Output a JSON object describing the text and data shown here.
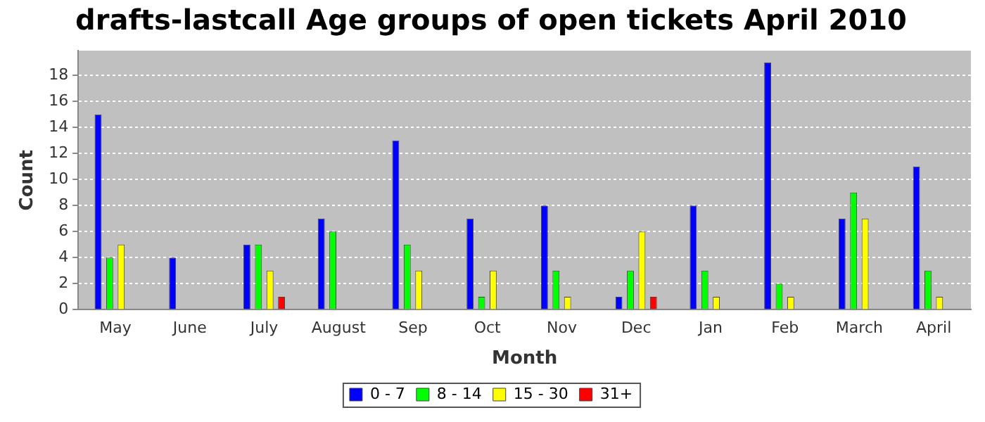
{
  "chart_data": {
    "type": "bar",
    "title": "drafts-lastcall Age groups of open tickets April 2010",
    "xlabel": "Month",
    "ylabel": "Count",
    "categories": [
      "May",
      "June",
      "July",
      "August",
      "Sep",
      "Oct",
      "Nov",
      "Dec",
      "Jan",
      "Feb",
      "March",
      "April"
    ],
    "series": [
      {
        "name": "0 - 7",
        "color": "#0000ff",
        "values": [
          15,
          4,
          5,
          7,
          13,
          7,
          8,
          1,
          8,
          19,
          7,
          11
        ]
      },
      {
        "name": "8 - 14",
        "color": "#00ff00",
        "values": [
          4,
          0,
          5,
          6,
          5,
          1,
          3,
          3,
          3,
          2,
          9,
          3
        ]
      },
      {
        "name": "15 - 30",
        "color": "#ffff00",
        "values": [
          5,
          0,
          3,
          0,
          3,
          3,
          1,
          6,
          1,
          1,
          7,
          1
        ]
      },
      {
        "name": "31+",
        "color": "#ff0000",
        "values": [
          0,
          0,
          1,
          0,
          0,
          0,
          0,
          1,
          0,
          0,
          0,
          0
        ]
      }
    ],
    "ylim": [
      0,
      19.9
    ],
    "yticks": [
      0,
      2,
      4,
      6,
      8,
      10,
      12,
      14,
      16,
      18
    ],
    "grid": "y",
    "legend": "bottom"
  }
}
